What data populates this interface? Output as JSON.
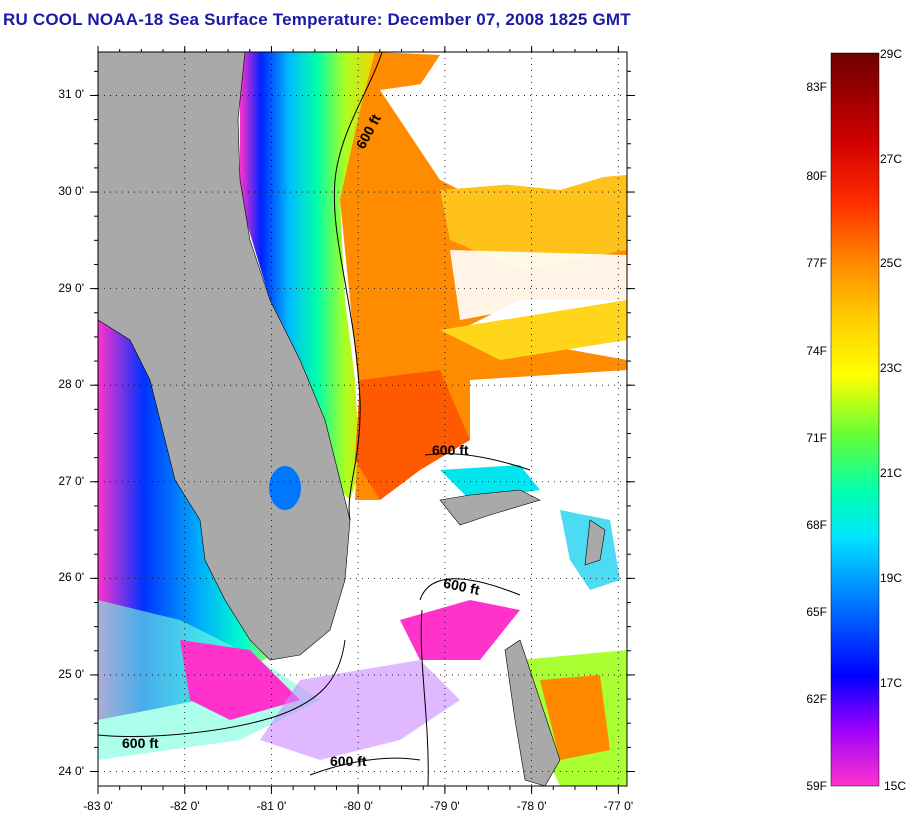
{
  "title": "RU COOL  NOAA-18  Sea Surface Temperature:  December 07, 2008 1825 GMT",
  "map": {
    "lon_range": [
      -83,
      -76.9
    ],
    "lat_range": [
      23.85,
      31.45
    ],
    "x_ticks": [
      {
        "lon": -83,
        "label": "-83 0'"
      },
      {
        "lon": -82,
        "label": "-82 0'"
      },
      {
        "lon": -81,
        "label": "-81 0'"
      },
      {
        "lon": -80,
        "label": "-80 0'"
      },
      {
        "lon": -79,
        "label": "-79 0'"
      },
      {
        "lon": -78,
        "label": "-78 0'"
      },
      {
        "lon": -77,
        "label": "-77 0'"
      }
    ],
    "y_ticks": [
      {
        "lat": 31,
        "label": "31 0'"
      },
      {
        "lat": 30,
        "label": "30 0'"
      },
      {
        "lat": 29,
        "label": "29 0'"
      },
      {
        "lat": 28,
        "label": "28 0'"
      },
      {
        "lat": 27,
        "label": "27 0'"
      },
      {
        "lat": 26,
        "label": "26 0'"
      },
      {
        "lat": 25,
        "label": "25 0'"
      },
      {
        "lat": 24,
        "label": "24 0'"
      }
    ],
    "isobath_labels": [
      "600 ft",
      "600 ft",
      "600 ft",
      "600 ft",
      "600 ft"
    ],
    "colors": {
      "land": "#a9a9a9",
      "cloud": "#ffffff",
      "isobath": "#000000"
    }
  },
  "colorbar": {
    "celsius_labels": [
      "29C",
      "27C",
      "25C",
      "23C",
      "21C",
      "19C",
      "17C",
      "15C"
    ],
    "fahrenheit_labels": [
      "83F",
      "80F",
      "77F",
      "74F",
      "71F",
      "68F",
      "65F",
      "62F",
      "59F"
    ],
    "stops": [
      "#6e0000",
      "#ff0000",
      "#ff7f00",
      "#ffd200",
      "#ffff00",
      "#66ff33",
      "#00ffb0",
      "#00e5ff",
      "#0077ff",
      "#0000ff",
      "#9900ff",
      "#ff33cc"
    ]
  }
}
